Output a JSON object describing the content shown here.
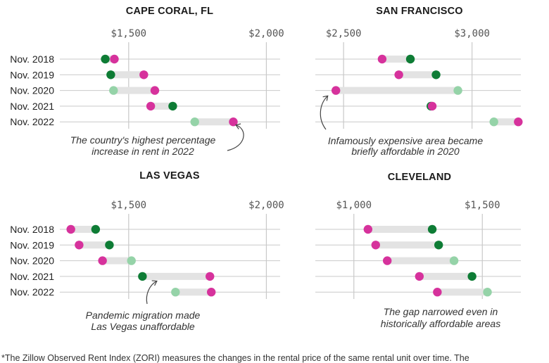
{
  "chart_data": [
    {
      "type": "dumbbell",
      "title": "CAPE CORAL, FL",
      "xlim": [
        1250,
        2050
      ],
      "ticks": [
        1500,
        2000
      ],
      "tick_labels": [
        "$1,500",
        "$2,000"
      ],
      "categories": [
        "Nov. 2018",
        "Nov. 2019",
        "Nov. 2020",
        "Nov. 2021",
        "Nov. 2022"
      ],
      "series": [
        {
          "values": [
            1415,
            1435,
            1445,
            1660,
            1740
          ]
        },
        {
          "values": [
            1448,
            1555,
            1595,
            1580,
            1880
          ]
        }
      ],
      "start_color_strong": [
        true,
        true,
        false,
        true,
        false
      ],
      "annotation": [
        "The country's highest percentage",
        "increase in rent in 2022"
      ]
    },
    {
      "type": "dumbbell",
      "title": "SAN FRANCISCO",
      "xlim": [
        2390,
        3190
      ],
      "ticks": [
        2500,
        3000
      ],
      "tick_labels": [
        "$2,500",
        "$3,000"
      ],
      "categories": [
        "Nov. 2018",
        "Nov. 2019",
        "Nov. 2020",
        "Nov. 2021",
        "Nov. 2022"
      ],
      "series": [
        {
          "values": [
            2760,
            2860,
            2945,
            2840,
            3085
          ]
        },
        {
          "values": [
            2650,
            2715,
            2470,
            2845,
            3180
          ]
        }
      ],
      "start_color_strong": [
        true,
        true,
        false,
        true,
        false
      ],
      "annotation": [
        "Infamously expensive area became",
        "briefly affordable in 2020"
      ]
    },
    {
      "type": "dumbbell",
      "title": "LAS VEGAS",
      "xlim": [
        1250,
        2050
      ],
      "ticks": [
        1500,
        2000
      ],
      "tick_labels": [
        "$1,500",
        "$2,000"
      ],
      "categories": [
        "Nov. 2018",
        "Nov. 2019",
        "Nov. 2020",
        "Nov. 2021",
        "Nov. 2022"
      ],
      "series": [
        {
          "values": [
            1380,
            1430,
            1510,
            1550,
            1670
          ]
        },
        {
          "values": [
            1290,
            1320,
            1405,
            1795,
            1800
          ]
        }
      ],
      "start_color_strong": [
        true,
        true,
        false,
        true,
        false
      ],
      "annotation": [
        "Pandemic migration made",
        "Las Vegas unaffordable"
      ]
    },
    {
      "type": "dumbbell",
      "title": "CLEVELAND",
      "xlim": [
        850,
        1650
      ],
      "ticks": [
        1000,
        1500
      ],
      "tick_labels": [
        "$1,000",
        "$1,500"
      ],
      "categories": [
        "Nov. 2018",
        "Nov. 2019",
        "Nov. 2020",
        "Nov. 2021",
        "Nov. 2022"
      ],
      "series": [
        {
          "values": [
            1305,
            1330,
            1390,
            1460,
            1520
          ]
        },
        {
          "values": [
            1055,
            1085,
            1130,
            1255,
            1325
          ]
        }
      ],
      "start_color_strong": [
        true,
        true,
        false,
        true,
        false
      ],
      "annotation": [
        "The gap narrowed even in",
        "historically affordable areas"
      ]
    }
  ],
  "colors": {
    "pink": "#d6329c",
    "green_dark": "#0e7c35",
    "green_light": "#95d3a8",
    "bar": "#e3e3e3",
    "grid": "#c9c9c9"
  },
  "footnote": "*The Zillow Observed Rent Index (ZORI) measures the changes in the rental price of the same rental unit over time. The"
}
